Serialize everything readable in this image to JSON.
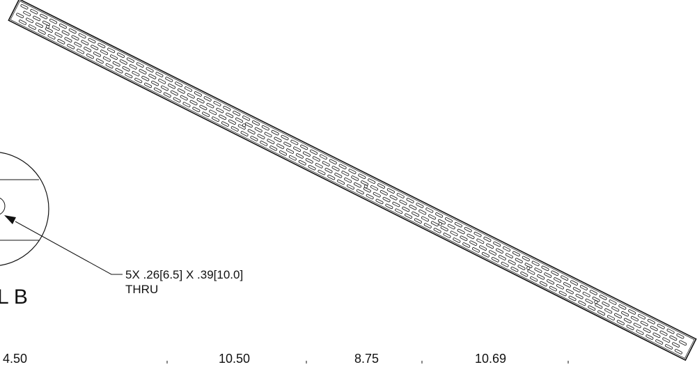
{
  "callout": {
    "line1": "5X .26[6.5] X .39[10.0]",
    "line2": "THRU"
  },
  "detail_label": "L B",
  "dimensions": [
    "4.50",
    "10.50",
    "8.75",
    "10.69"
  ],
  "colors": {
    "line": "#111111",
    "background": "#ffffff"
  }
}
